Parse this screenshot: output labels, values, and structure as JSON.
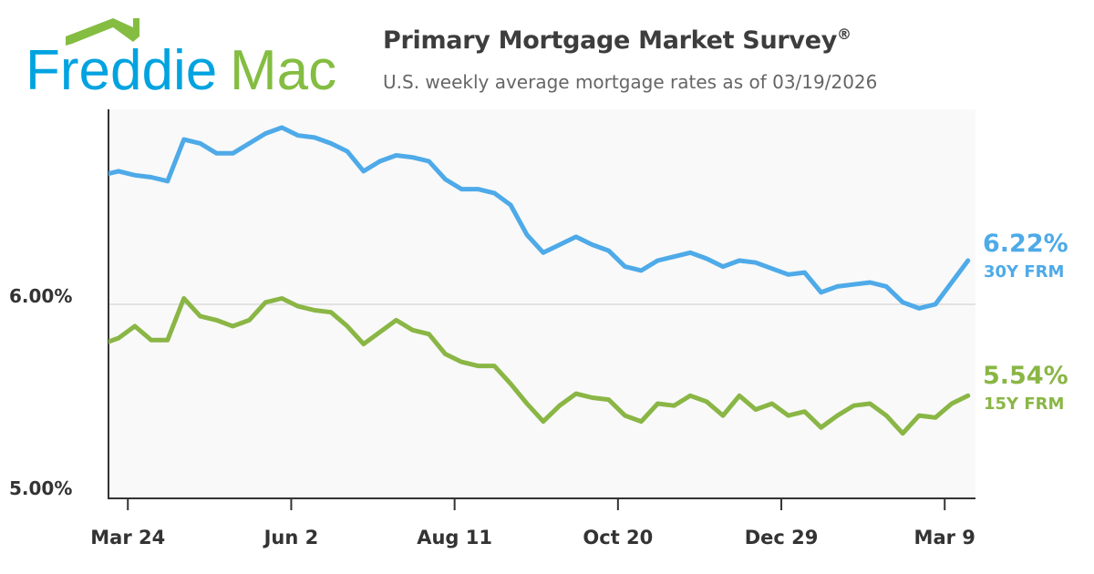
{
  "brand": {
    "logo_text_1": "Freddie",
    "logo_text_2": "Mac",
    "blue": "#00a3e0",
    "green": "#84bd41"
  },
  "header": {
    "title": "Primary Mortgage Market Survey",
    "title_mark": "®",
    "subtitle": "U.S. weekly average mortgage rates as of 03/19/2026"
  },
  "chart_data": {
    "type": "line",
    "title": "Primary Mortgage Market Survey®",
    "subtitle": "U.S. weekly average mortgage rates as of 03/19/2026",
    "ylim": [
      5.0,
      7.0
    ],
    "y_ticks": [
      {
        "value": 5.0,
        "label": "5.00%"
      },
      {
        "value": 6.0,
        "label": "6.00%"
      }
    ],
    "x_ticks": [
      {
        "date": "2025-03-24",
        "label": "Mar 24"
      },
      {
        "date": "2025-06-02",
        "label": "Jun 2"
      },
      {
        "date": "2025-08-11",
        "label": "Aug 11"
      },
      {
        "date": "2025-10-20",
        "label": "Oct 20"
      },
      {
        "date": "2025-12-29",
        "label": "Dec 29"
      },
      {
        "date": "2026-03-09",
        "label": "Mar 9"
      }
    ],
    "grid": "horizontal at 6.00%",
    "x_start": "2025-03-13",
    "x_interval": "weekly",
    "series": [
      {
        "name": "30Y FRM",
        "end_label": "6.22%",
        "color": "#4eaae8",
        "values": [
          6.65,
          6.67,
          6.65,
          6.64,
          6.62,
          6.83,
          6.81,
          6.76,
          6.76,
          6.81,
          6.86,
          6.89,
          6.85,
          6.84,
          6.81,
          6.77,
          6.67,
          6.72,
          6.75,
          6.74,
          6.72,
          6.63,
          6.58,
          6.58,
          6.56,
          6.5,
          6.35,
          6.26,
          6.3,
          6.34,
          6.3,
          6.27,
          6.19,
          6.17,
          6.22,
          6.24,
          6.26,
          6.23,
          6.19,
          6.22,
          6.21,
          6.18,
          6.15,
          6.16,
          6.06,
          6.09,
          6.1,
          6.11,
          6.09,
          6.01,
          5.98,
          6.0,
          6.11,
          6.22
        ]
      },
      {
        "name": "15Y FRM",
        "end_label": "5.54%",
        "color": "#8ab645",
        "values": [
          5.8,
          5.83,
          5.89,
          5.82,
          5.82,
          6.03,
          5.94,
          5.92,
          5.89,
          5.92,
          6.01,
          6.03,
          5.99,
          5.97,
          5.96,
          5.89,
          5.8,
          5.86,
          5.92,
          5.87,
          5.85,
          5.75,
          5.71,
          5.69,
          5.69,
          5.6,
          5.5,
          5.41,
          5.49,
          5.55,
          5.53,
          5.52,
          5.44,
          5.41,
          5.5,
          5.49,
          5.54,
          5.51,
          5.44,
          5.54,
          5.47,
          5.5,
          5.44,
          5.46,
          5.38,
          5.44,
          5.49,
          5.5,
          5.44,
          5.35,
          5.44,
          5.43,
          5.5,
          5.54
        ]
      }
    ]
  }
}
